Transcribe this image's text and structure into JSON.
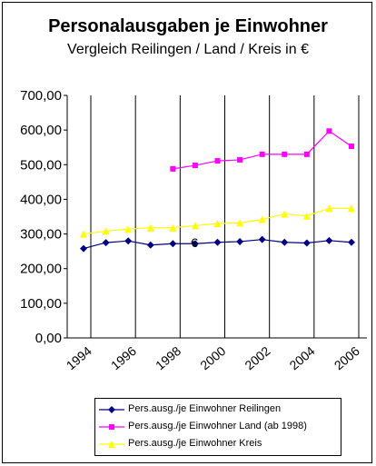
{
  "chart_data": {
    "type": "line",
    "title": "Personalausgaben je Einwohner",
    "subtitle": "Vergleich Reilingen / Land / Kreis in €",
    "x": [
      1994,
      1995,
      1996,
      1997,
      1998,
      1999,
      2000,
      2001,
      2002,
      2003,
      2004,
      2005,
      2006
    ],
    "x_tick_labels": [
      "1994",
      "1996",
      "1998",
      "2000",
      "2002",
      "2004",
      "2006"
    ],
    "y_tick_labels": [
      "0,00",
      "100,00",
      "200,00",
      "300,00",
      "400,00",
      "500,00",
      "600,00",
      "700,00"
    ],
    "ylim": [
      0,
      700
    ],
    "grid": "vertical",
    "legend_position": "bottom",
    "annotation": "€",
    "series": [
      {
        "name": "Pers.ausg./je Einwohner Reilingen",
        "color": "#000080",
        "marker": "diamond",
        "values": [
          258,
          275,
          280,
          268,
          272,
          272,
          276,
          278,
          284,
          276,
          274,
          281,
          276
        ]
      },
      {
        "name": "Pers.ausg./je Einwohner Land (ab 1998)",
        "color": "#ff00ff",
        "marker": "square",
        "values": [
          null,
          null,
          null,
          null,
          488,
          498,
          511,
          514,
          530,
          530,
          530,
          597,
          553
        ]
      },
      {
        "name": "Pers.ausg./je Einwohner Kreis",
        "color": "#ffff00",
        "marker": "triangle",
        "values": [
          300,
          308,
          314,
          318,
          318,
          324,
          330,
          332,
          342,
          358,
          352,
          374,
          374
        ]
      }
    ]
  }
}
